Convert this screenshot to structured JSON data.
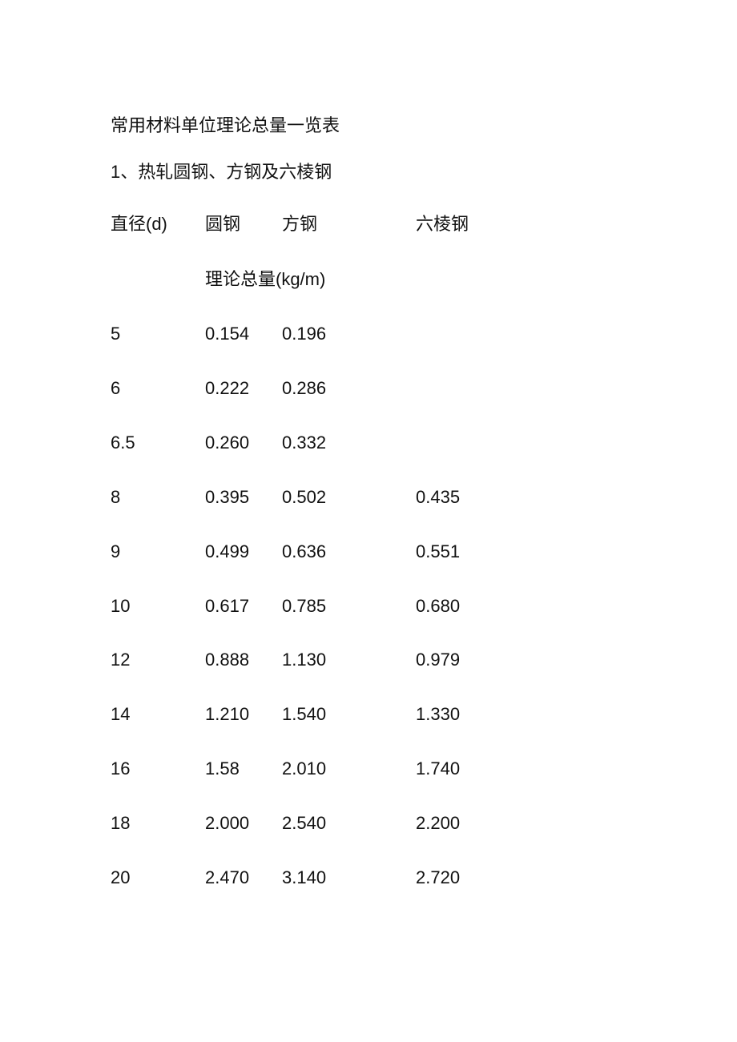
{
  "title": "常用材料单位理论总量一览表",
  "section": "1、热轧圆钢、方钢及六棱钢",
  "table": {
    "headers": [
      "直径(d)",
      "圆钢",
      "方钢",
      "六棱钢"
    ],
    "unit_label": "理论总量(kg/m)",
    "rows": [
      [
        "5",
        "0.154",
        "0.196",
        ""
      ],
      [
        "6",
        "0.222",
        "0.286",
        ""
      ],
      [
        "6.5",
        "0.260",
        "0.332",
        ""
      ],
      [
        "8",
        "0.395",
        "0.502",
        "0.435"
      ],
      [
        "9",
        "0.499",
        "0.636",
        "0.551"
      ],
      [
        "10",
        "0.617",
        "0.785",
        "0.680"
      ],
      [
        "12",
        "0.888",
        "1.130",
        "0.979"
      ],
      [
        "14",
        "1.210",
        "1.540",
        "1.330"
      ],
      [
        "16",
        "1.58",
        "2.010",
        "1.740"
      ],
      [
        "18",
        "2.000",
        "2.540",
        "2.200"
      ],
      [
        "20",
        "2.470",
        "3.140",
        "2.720"
      ]
    ]
  }
}
